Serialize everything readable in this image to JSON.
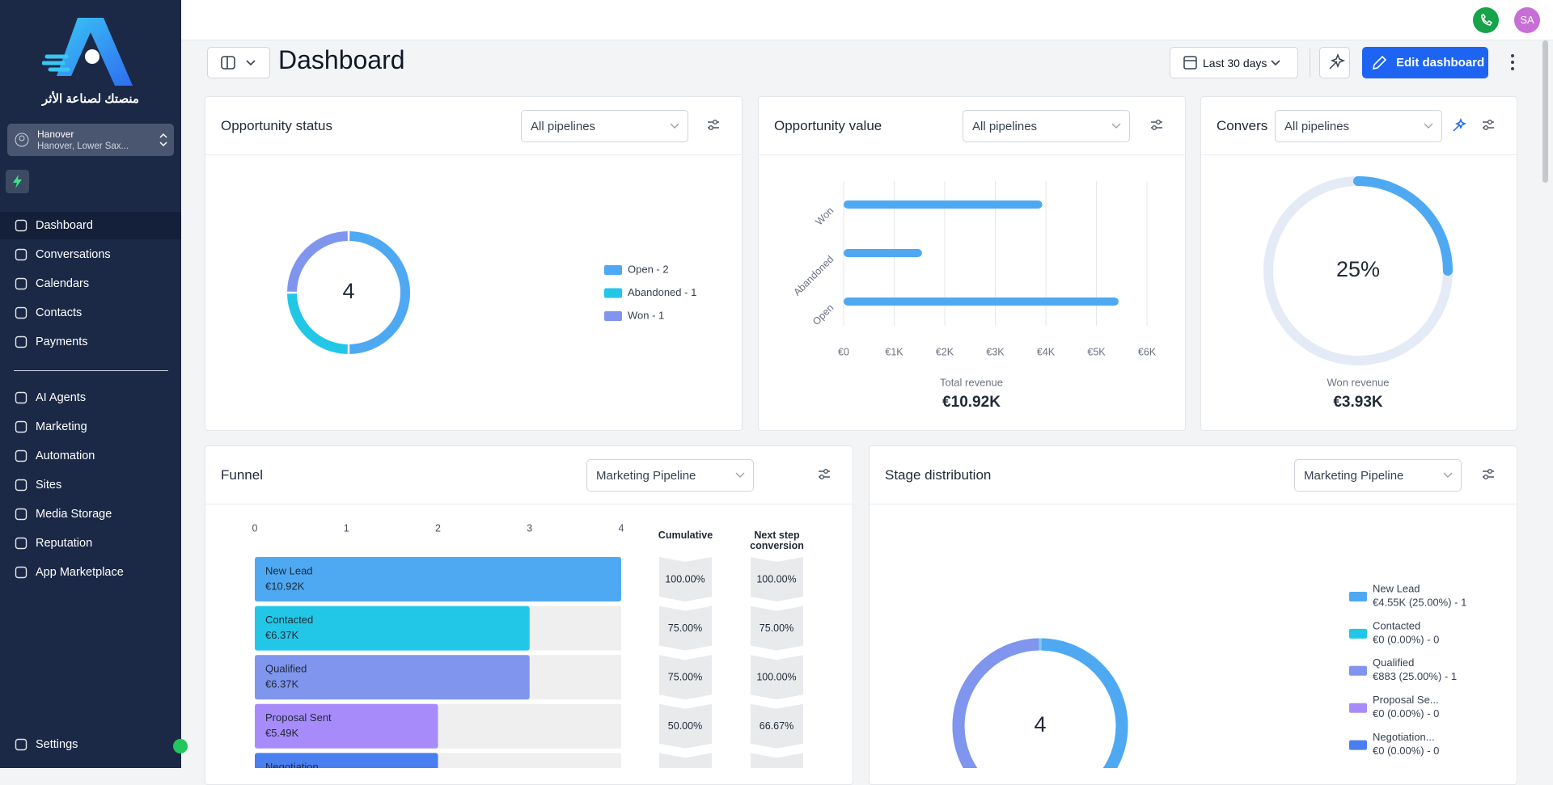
{
  "sidebar": {
    "tagline": "منصتك لصناعة الأثر",
    "location": {
      "name": "Hanover",
      "address": "Hanover, Lower Sax..."
    },
    "nav_main": [
      "Dashboard",
      "Conversations",
      "Calendars",
      "Contacts",
      "Payments"
    ],
    "nav_tools": [
      "AI Agents",
      "Marketing",
      "Automation",
      "Sites",
      "Media Storage",
      "Reputation",
      "App Marketplace"
    ],
    "settings": "Settings"
  },
  "topbar": {
    "avatar": "SA"
  },
  "header": {
    "title": "Dashboard",
    "date_range": "Last 30 days",
    "edit_button": "Edit dashboard"
  },
  "widgets": {
    "opportunity_status": {
      "title": "Opportunity status",
      "filter": "All pipelines",
      "chart_data": {
        "type": "donut",
        "total": 4,
        "categories": [
          "Open - 2",
          "Abandoned - 1",
          "Won - 1"
        ],
        "values": [
          2,
          1,
          1
        ],
        "colors": [
          "#4ea9f2",
          "#22c7e8",
          "#7f95ee"
        ]
      }
    },
    "opportunity_value": {
      "title": "Opportunity value",
      "filter": "All pipelines",
      "chart_data": {
        "type": "hbar",
        "categories": [
          "Won",
          "Abandoned",
          "Open"
        ],
        "values": [
          3930,
          1550,
          5440
        ],
        "color": "#4ea9f2",
        "xlim": [
          0,
          6000
        ],
        "xticks": [
          {
            "value": 0,
            "label": "€0"
          },
          {
            "value": 1000,
            "label": "€1K"
          },
          {
            "value": 2000,
            "label": "€2K"
          },
          {
            "value": 3000,
            "label": "€3K"
          },
          {
            "value": 4000,
            "label": "€4K"
          },
          {
            "value": 5000,
            "label": "€5K"
          },
          {
            "value": 6000,
            "label": "€6K"
          }
        ],
        "grid": true,
        "footer_label": "Total revenue",
        "footer_value": "€10.92K"
      }
    },
    "conversion": {
      "title": "Convers",
      "filter": "All pipelines",
      "chart_data": {
        "type": "gauge",
        "value": 25,
        "value_label": "25%",
        "lim": [
          0,
          100
        ],
        "color": "#4ea9f2",
        "footer_label": "Won revenue",
        "footer_value": "€3.93K"
      }
    },
    "funnel": {
      "title": "Funnel",
      "filter": "Marketing Pipeline",
      "chart_data": {
        "type": "funnel",
        "categories": [
          "New Lead",
          "Contacted",
          "Qualified",
          "Proposal Sent",
          "Negotiation"
        ],
        "values": [
          4,
          3,
          3,
          2,
          2
        ],
        "amounts": [
          "€10.92K",
          "€6.37K",
          "€6.37K",
          "€5.49K",
          null
        ],
        "colors": [
          "#4ea9f2",
          "#22c7e8",
          "#7f95ee",
          "#a78bfa",
          "#4a7ff0"
        ],
        "xlim": [
          0,
          4
        ],
        "xticks": [
          0,
          1,
          2,
          3,
          4
        ],
        "cumulative_header": "Cumulative",
        "cumulative": [
          "100.00%",
          "75.00%",
          "75.00%",
          "50.00%",
          null
        ],
        "conversion_header": "Next step conversion",
        "conversion": [
          "100.00%",
          "75.00%",
          "100.00%",
          "66.67%",
          null
        ]
      }
    },
    "stage_distribution": {
      "title": "Stage distribution",
      "filter": "Marketing Pipeline",
      "chart_data": {
        "type": "donut",
        "total": 4,
        "categories": [
          "New Lead",
          "Contacted",
          "Qualified",
          "Proposal Se...",
          "Negotiation..."
        ],
        "details": [
          "€4.55K (25.00%) - 1",
          "€0 (0.00%) - 0",
          "€883 (25.00%) - 1",
          "€0 (0.00%) - 0",
          "€0 (0.00%) - 0"
        ],
        "values": [
          1,
          0,
          1,
          0,
          0
        ],
        "colors": [
          "#4ea9f2",
          "#22c7e8",
          "#7f95ee",
          "#a78bfa",
          "#4a7ff0"
        ]
      }
    }
  }
}
